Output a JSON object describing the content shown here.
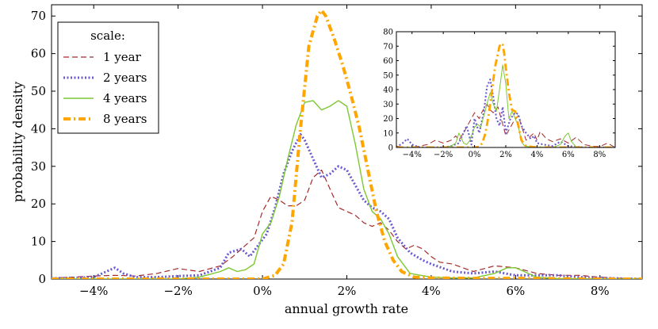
{
  "chart_data": [
    {
      "type": "line",
      "xlabel": "annual growth rate",
      "ylabel": "probability density",
      "xlim": [
        -5,
        9
      ],
      "ylim": [
        0,
        73
      ],
      "xticks": [
        -4,
        -2,
        0,
        2,
        4,
        6,
        8
      ],
      "xtick_labels": [
        "−4%",
        "−2%",
        "0%",
        "2%",
        "4%",
        "6%",
        "8%"
      ],
      "yticks": [
        0,
        10,
        20,
        30,
        40,
        50,
        60,
        70
      ],
      "ytick_labels": [
        "0",
        "10",
        "20",
        "30",
        "40",
        "50",
        "60",
        "70"
      ],
      "grid": false,
      "legend": {
        "title": "scale:",
        "placement": "top-left",
        "entries": [
          "1 year",
          "2 years",
          "4 years",
          "8 years"
        ]
      },
      "series": [
        {
          "name": "1 year",
          "color": "#a52a2a",
          "style": "dashed",
          "x": [
            -5.0,
            -4.5,
            -4.0,
            -3.5,
            -3.0,
            -2.5,
            -2.0,
            -1.5,
            -1.0,
            -0.7,
            -0.4,
            -0.2,
            0.0,
            0.2,
            0.4,
            0.6,
            0.8,
            1.0,
            1.2,
            1.4,
            1.6,
            1.8,
            2.0,
            2.2,
            2.4,
            2.6,
            2.8,
            3.0,
            3.2,
            3.4,
            3.6,
            3.8,
            4.0,
            4.2,
            4.5,
            5.0,
            5.5,
            6.0,
            6.5,
            7.0,
            7.5,
            8.0,
            8.5,
            9.0
          ],
          "values": [
            0.3,
            0.5,
            0.8,
            1.0,
            0.8,
            1.5,
            2.8,
            2.0,
            3.5,
            6.0,
            9.0,
            11.0,
            18.0,
            22.0,
            21.0,
            19.5,
            19.5,
            21.0,
            27.0,
            29.0,
            24.0,
            19.0,
            18.0,
            17.0,
            15.0,
            14.0,
            15.0,
            13.0,
            10.0,
            8.0,
            9.0,
            8.0,
            6.0,
            4.5,
            4.0,
            2.0,
            3.5,
            3.0,
            1.5,
            1.0,
            1.0,
            0.5,
            0.2,
            0.1
          ]
        },
        {
          "name": "2 years",
          "color": "#6a5acd",
          "style": "dotted",
          "x": [
            -5.0,
            -4.5,
            -4.0,
            -3.7,
            -3.5,
            -3.3,
            -3.0,
            -2.5,
            -2.0,
            -1.5,
            -1.0,
            -0.8,
            -0.5,
            -0.3,
            -0.1,
            0.1,
            0.3,
            0.5,
            0.7,
            0.9,
            1.0,
            1.2,
            1.4,
            1.6,
            1.8,
            2.0,
            2.2,
            2.4,
            2.6,
            2.8,
            3.0,
            3.2,
            3.5,
            3.8,
            4.0,
            4.5,
            5.0,
            5.5,
            6.0,
            6.5,
            7.0,
            7.5,
            8.0,
            9.0
          ],
          "values": [
            0.2,
            0.3,
            0.5,
            2.0,
            3.0,
            1.5,
            0.5,
            0.5,
            0.8,
            1.0,
            3.0,
            7.0,
            8.0,
            6.0,
            9.0,
            12.0,
            19.0,
            28.0,
            34.0,
            38.5,
            37.0,
            32.0,
            27.0,
            28.0,
            30.0,
            29.0,
            25.0,
            21.0,
            19.0,
            18.0,
            16.0,
            11.0,
            7.0,
            5.0,
            4.0,
            2.0,
            1.5,
            2.0,
            1.0,
            1.0,
            1.0,
            0.5,
            0.3,
            0.0
          ]
        },
        {
          "name": "4 years",
          "color": "#7cc832",
          "style": "solid",
          "x": [
            -5.0,
            -4.0,
            -3.0,
            -2.0,
            -1.5,
            -1.0,
            -0.8,
            -0.6,
            -0.4,
            -0.2,
            0.0,
            0.2,
            0.4,
            0.6,
            0.8,
            1.0,
            1.2,
            1.4,
            1.6,
            1.8,
            2.0,
            2.2,
            2.4,
            2.6,
            2.8,
            3.0,
            3.2,
            3.5,
            4.0,
            4.5,
            5.0,
            5.5,
            5.8,
            6.0,
            6.2,
            6.5,
            7.0,
            8.0,
            9.0
          ],
          "values": [
            0.0,
            0.0,
            0.0,
            0.0,
            0.5,
            2.0,
            3.0,
            2.0,
            2.5,
            4.0,
            12.0,
            15.0,
            22.0,
            32.0,
            41.0,
            47.0,
            47.5,
            45.0,
            46.0,
            47.5,
            46.0,
            36.0,
            24.0,
            18.0,
            16.0,
            12.0,
            6.0,
            1.5,
            0.5,
            0.3,
            0.3,
            1.5,
            3.0,
            3.0,
            2.0,
            0.5,
            0.1,
            0.0,
            0.0
          ]
        },
        {
          "name": "8 years",
          "color": "#ffa500",
          "style": "dashdot",
          "x": [
            -5.0,
            -2.0,
            -1.0,
            0.0,
            0.3,
            0.5,
            0.7,
            0.9,
            1.1,
            1.3,
            1.4,
            1.5,
            1.7,
            1.9,
            2.1,
            2.3,
            2.5,
            2.7,
            2.9,
            3.1,
            3.3,
            3.6,
            4.0,
            5.0,
            6.0,
            7.0,
            8.0,
            9.0
          ],
          "values": [
            0.0,
            0.0,
            0.0,
            0.0,
            1.0,
            4.0,
            15.0,
            40.0,
            62.0,
            70.0,
            71.5,
            70.0,
            64.0,
            57.0,
            49.0,
            40.0,
            29.0,
            18.0,
            10.0,
            5.0,
            2.0,
            0.5,
            0.3,
            0.2,
            0.2,
            0.1,
            0.0,
            0.0
          ]
        }
      ]
    },
    {
      "type": "line",
      "placement": "inset top-right",
      "xlim": [
        -5,
        9
      ],
      "ylim": [
        0,
        80
      ],
      "xticks": [
        -4,
        -2,
        0,
        2,
        4,
        6,
        8
      ],
      "xtick_labels": [
        "−4%",
        "−2%",
        "0%",
        "2%",
        "4%",
        "6%",
        "8%"
      ],
      "yticks": [
        0,
        10,
        20,
        30,
        40,
        50,
        60,
        70,
        80
      ],
      "ytick_labels": [
        "0",
        "10",
        "20",
        "30",
        "40",
        "50",
        "60",
        "70",
        "80"
      ],
      "series": [
        {
          "color": "#a52a2a",
          "style": "dashed",
          "x": [
            -5.0,
            -4.5,
            -4.0,
            -3.0,
            -2.5,
            -2.0,
            -1.5,
            -1.2,
            -1.0,
            -0.6,
            -0.2,
            0.0,
            0.3,
            0.5,
            0.8,
            1.0,
            1.2,
            1.5,
            1.8,
            2.0,
            2.2,
            2.5,
            2.8,
            3.0,
            3.3,
            3.6,
            3.8,
            4.0,
            4.2,
            4.6,
            5.0,
            5.5,
            6.0,
            6.5,
            7.0,
            7.5,
            8.0,
            8.5,
            9.0
          ],
          "values": [
            1.0,
            0.0,
            0.0,
            2.0,
            5.0,
            3.0,
            5.0,
            8.0,
            5.0,
            12.0,
            20.0,
            24.0,
            20.0,
            25.0,
            30.0,
            26.0,
            24.0,
            28.0,
            16.0,
            8.0,
            12.0,
            18.0,
            22.0,
            15.0,
            5.0,
            8.0,
            10.0,
            5.0,
            11.0,
            6.0,
            4.0,
            6.0,
            3.0,
            7.0,
            2.0,
            1.0,
            0.5,
            3.0,
            0.0
          ]
        },
        {
          "color": "#6a5acd",
          "style": "dotted",
          "x": [
            -5.0,
            -4.6,
            -4.3,
            -4.0,
            -3.5,
            -3.0,
            -2.5,
            -2.0,
            -1.5,
            -1.0,
            -0.5,
            -0.2,
            0.0,
            0.3,
            0.6,
            0.8,
            1.0,
            1.2,
            1.4,
            1.6,
            1.8,
            2.0,
            2.3,
            2.6,
            2.8,
            3.0,
            3.3,
            3.6,
            3.8,
            4.0,
            4.4,
            5.0,
            5.5,
            6.0,
            6.5,
            7.0,
            8.0,
            9.0
          ],
          "values": [
            0.0,
            3.0,
            6.0,
            2.0,
            0.0,
            0.0,
            0.0,
            0.0,
            1.0,
            3.0,
            15.0,
            2.0,
            20.0,
            10.0,
            25.0,
            42.0,
            47.0,
            35.0,
            20.0,
            15.0,
            28.0,
            10.0,
            20.0,
            24.0,
            23.0,
            15.0,
            10.0,
            6.0,
            8.0,
            3.0,
            2.0,
            1.0,
            4.0,
            1.0,
            0.5,
            0.0,
            0.0,
            0.0
          ]
        },
        {
          "color": "#7cc832",
          "style": "solid",
          "x": [
            -5.0,
            -2.0,
            -1.5,
            -1.2,
            -1.0,
            -0.7,
            -0.5,
            -0.3,
            0.0,
            0.2,
            0.4,
            0.6,
            0.8,
            1.0,
            1.2,
            1.4,
            1.6,
            1.8,
            2.0,
            2.2,
            2.4,
            2.6,
            2.8,
            3.0,
            3.2,
            3.5,
            4.0,
            5.0,
            5.5,
            5.8,
            6.0,
            6.2,
            6.5,
            7.0,
            9.0
          ],
          "values": [
            0.0,
            0.0,
            1.0,
            3.0,
            10.0,
            3.0,
            2.0,
            5.0,
            14.0,
            16.0,
            14.0,
            22.0,
            30.0,
            38.0,
            30.0,
            25.0,
            40.0,
            57.0,
            44.0,
            20.0,
            25.0,
            20.0,
            15.0,
            4.0,
            1.0,
            0.5,
            0.2,
            0.0,
            2.0,
            8.0,
            10.0,
            4.0,
            0.5,
            0.0,
            0.0
          ]
        },
        {
          "color": "#ffa500",
          "style": "dashdot",
          "x": [
            -5.0,
            0.0,
            0.3,
            0.5,
            0.7,
            0.9,
            1.1,
            1.3,
            1.5,
            1.6,
            1.7,
            1.8,
            1.9,
            2.0,
            2.2,
            2.4,
            2.6,
            2.8,
            3.0,
            3.3,
            4.0,
            9.0
          ],
          "values": [
            0.0,
            0.0,
            0.5,
            3.0,
            10.0,
            22.0,
            38.0,
            55.0,
            65.0,
            70.0,
            72.0,
            71.0,
            65.0,
            55.0,
            38.0,
            26.0,
            25.0,
            15.0,
            5.0,
            1.0,
            0.0,
            0.0
          ]
        }
      ]
    }
  ]
}
